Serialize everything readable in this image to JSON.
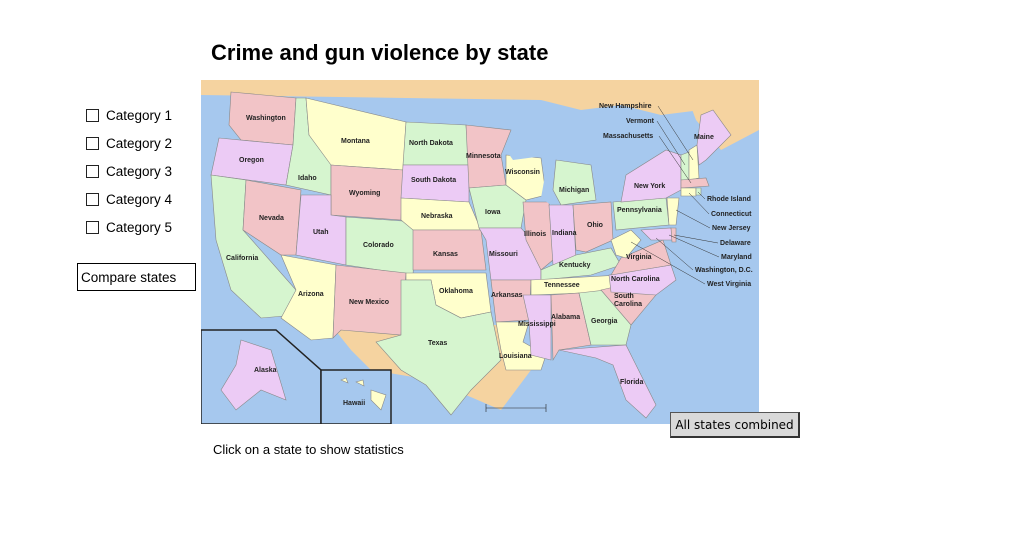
{
  "page": {
    "title": "Crime and gun violence by state"
  },
  "categories": [
    {
      "label": "Category 1",
      "checked": false
    },
    {
      "label": "Category 2",
      "checked": false
    },
    {
      "label": "Category 3",
      "checked": false
    },
    {
      "label": "Category 4",
      "checked": false
    },
    {
      "label": "Category 5",
      "checked": false
    }
  ],
  "buttons": {
    "compare_label": "Compare states",
    "all_label": "All states combined"
  },
  "hint": "Click on a state to show statistics",
  "map": {
    "states": {
      "wa": "Washington",
      "or": "Oregon",
      "ca": "California",
      "id": "Idaho",
      "nv": "Nevada",
      "mt": "Montana",
      "wy": "Wyoming",
      "ut": "Utah",
      "az": "Arizona",
      "co": "Colorado",
      "nm": "New Mexico",
      "nd": "North Dakota",
      "sd": "South Dakota",
      "ne": "Nebraska",
      "ks": "Kansas",
      "ok": "Oklahoma",
      "tx": "Texas",
      "mn": "Minnesota",
      "ia": "Iowa",
      "mo": "Missouri",
      "ar": "Arkansas",
      "la": "Louisiana",
      "wi": "Wisconsin",
      "il": "Illinois",
      "mi": "Michigan",
      "in": "Indiana",
      "oh": "Ohio",
      "ky": "Kentucky",
      "tn": "Tennessee",
      "ms": "Mississippi",
      "al": "Alabama",
      "ga": "Georgia",
      "fl": "Florida",
      "sc_line1": "South",
      "sc_line2": "Carolina",
      "nc": "North Carolina",
      "va": "Virginia",
      "wv": "West Virginia",
      "pa": "Pennsylvania",
      "ny": "New York",
      "me": "Maine",
      "nh": "New Hampshire",
      "vt": "Vermont",
      "ma": "Massachusetts",
      "ri": "Rhode Island",
      "ct": "Connecticut",
      "nj": "New Jersey",
      "de": "Delaware",
      "md": "Maryland",
      "dc": "Washington, D.C.",
      "ak": "Alaska",
      "hi": "Hawaii"
    },
    "colors": {
      "ocean": "#a6c8ee",
      "land_bg": "#f5d3a0",
      "pink": "#f2c4c7",
      "yellow": "#ffffcc",
      "green": "#d6f5cf",
      "purple": "#eccbf5"
    }
  }
}
